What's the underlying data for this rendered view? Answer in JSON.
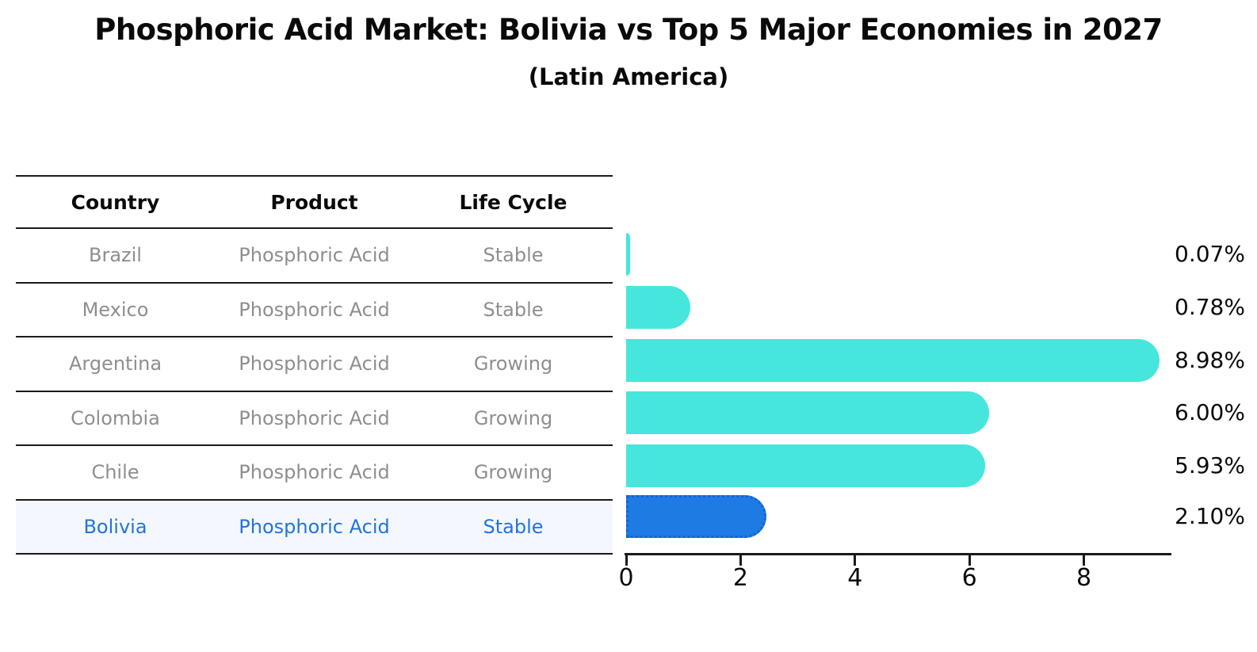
{
  "title": "Phosphoric Acid Market: Bolivia vs Top 5 Major Economies in 2027",
  "subtitle": "(Latin America)",
  "table": {
    "headers": [
      "Country",
      "Product",
      "Life Cycle"
    ],
    "rows": [
      {
        "country": "Brazil",
        "product": "Phosphoric Acid",
        "life_cycle": "Stable",
        "highlighted": false
      },
      {
        "country": "Mexico",
        "product": "Phosphoric Acid",
        "life_cycle": "Stable",
        "highlighted": false
      },
      {
        "country": "Argentina",
        "product": "Phosphoric Acid",
        "life_cycle": "Growing",
        "highlighted": false
      },
      {
        "country": "Colombia",
        "product": "Phosphoric Acid",
        "life_cycle": "Growing",
        "highlighted": false
      },
      {
        "country": "Chile",
        "product": "Phosphoric Acid",
        "life_cycle": "Growing",
        "highlighted": false
      },
      {
        "country": "Bolivia",
        "product": "Phosphoric Acid",
        "life_cycle": "Stable",
        "highlighted": true
      }
    ]
  },
  "chart_data": {
    "type": "bar",
    "orientation": "horizontal",
    "title": "Phosphoric Acid Market: Bolivia vs Top 5 Major Economies in 2027",
    "subtitle": "(Latin America)",
    "categories": [
      "Brazil",
      "Mexico",
      "Argentina",
      "Colombia",
      "Chile",
      "Bolivia"
    ],
    "values": [
      0.07,
      0.78,
      8.98,
      6.0,
      5.93,
      2.1
    ],
    "value_labels": [
      "0.07%",
      "0.78%",
      "8.98%",
      "6.00%",
      "5.93%",
      "2.10%"
    ],
    "xlabel": "",
    "ylabel": "",
    "x_ticks": [
      0,
      2,
      4,
      6,
      8
    ],
    "xlim": [
      0,
      9.5
    ],
    "grid": false,
    "legend": null,
    "highlight_index": 5,
    "bar_color": "#46E6DC",
    "highlight_bar_color": "#1F7BE4",
    "highlight_border_color": "#1661D6",
    "highlight_text_color": "#2274DB",
    "row_text_color": "#8E8E8E",
    "axis_color": "#1A1A1A"
  }
}
